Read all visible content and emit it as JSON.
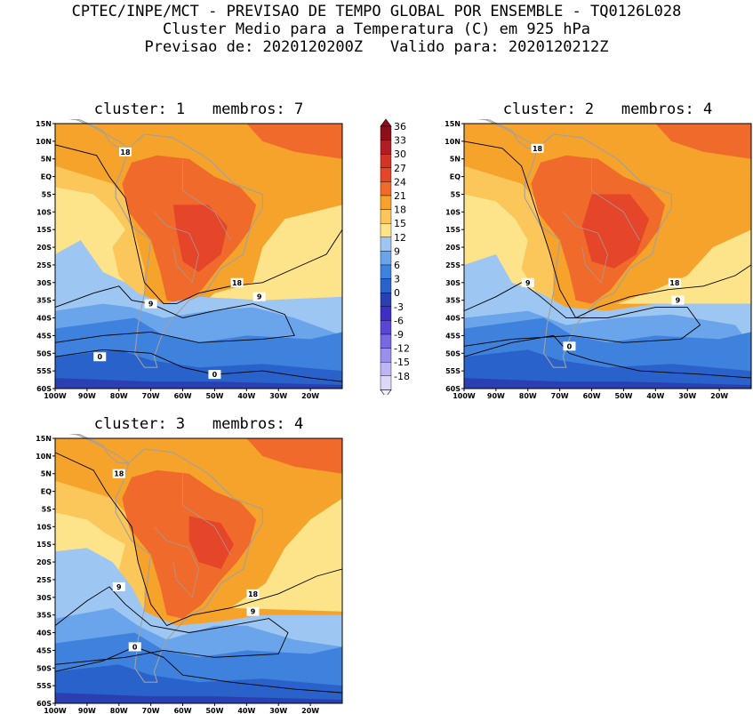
{
  "header": {
    "line1": "CPTEC/INPE/MCT - PREVISAO DE TEMPO GLOBAL POR ENSEMBLE - TQ0126L028",
    "line2": "Cluster Medio para a Temperatura (C) em 925 hPa",
    "line3": "Previsao de: 2020120200Z   Valido para: 2020120212Z"
  },
  "panels": [
    {
      "title": "cluster: 1   membros: 7"
    },
    {
      "title": "cluster: 2   membros: 4"
    },
    {
      "title": "cluster: 3   membros: 4"
    }
  ],
  "axes": {
    "lat_labels": [
      "15N",
      "10N",
      "5N",
      "EQ",
      "5S",
      "10S",
      "15S",
      "20S",
      "25S",
      "30S",
      "35S",
      "40S",
      "45S",
      "50S",
      "55S",
      "60S"
    ],
    "lon_labels": [
      "100W",
      "90W",
      "80W",
      "70W",
      "60W",
      "50W",
      "40W",
      "30W",
      "20W"
    ]
  },
  "contour_labels": {
    "c18": "18",
    "c9": "9",
    "c0": "0"
  },
  "colorbar": {
    "levels": [
      "36",
      "33",
      "30",
      "27",
      "24",
      "21",
      "18",
      "15",
      "12",
      "9",
      "6",
      "3",
      "0",
      "-3",
      "-6",
      "-9",
      "-12",
      "-15",
      "-18"
    ],
    "colors": [
      "#8c0f1c",
      "#b01e25",
      "#d33426",
      "#e5462a",
      "#f06a2b",
      "#f6a32c",
      "#fbc65a",
      "#fde38a",
      "#9ec6f3",
      "#6aa5ec",
      "#3f82de",
      "#2a62cb",
      "#2a3fb2",
      "#3e2ec4",
      "#5a45d6",
      "#7868e2",
      "#9a8fea",
      "#bdb6f2",
      "#dcd8f8"
    ]
  }
}
